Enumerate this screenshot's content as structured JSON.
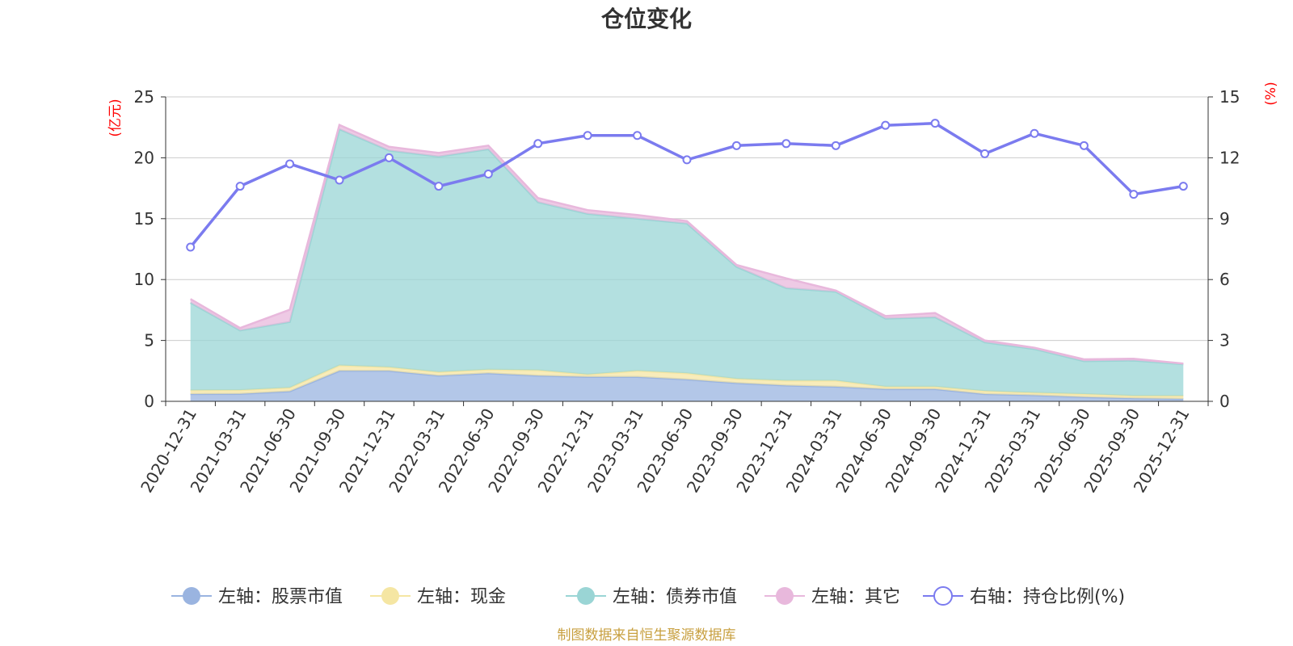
{
  "chart_data": {
    "type": "area",
    "title": "仓位变化",
    "left_axis": {
      "unit": "(亿元)",
      "min": 0,
      "max": 25,
      "ticks": [
        0,
        5,
        10,
        15,
        20,
        25
      ]
    },
    "right_axis": {
      "unit": "(%)",
      "min": 0,
      "max": 15,
      "ticks": [
        0,
        3,
        6,
        9,
        12,
        15
      ]
    },
    "grid": true,
    "legend_position": "bottom",
    "categories": [
      "2020-12-31",
      "2021-03-31",
      "2021-06-30",
      "2021-09-30",
      "2021-12-31",
      "2022-03-31",
      "2022-06-30",
      "2022-09-30",
      "2022-12-31",
      "2023-03-31",
      "2023-06-30",
      "2023-09-30",
      "2023-12-31",
      "2024-03-31",
      "2024-06-30",
      "2024-09-30",
      "2024-12-31",
      "2025-03-31",
      "2025-06-30",
      "2025-09-30",
      "2025-12-31"
    ],
    "series": [
      {
        "name": "左轴：股票市值",
        "axis": "left",
        "kind": "stacked-area",
        "color": "#9ab4e0",
        "values": [
          0.6,
          0.62,
          0.82,
          2.5,
          2.5,
          2.1,
          2.3,
          2.1,
          2.0,
          2.0,
          1.8,
          1.5,
          1.3,
          1.2,
          1.0,
          1.0,
          0.6,
          0.5,
          0.35,
          0.25,
          0.2
        ]
      },
      {
        "name": "左轴：现金",
        "axis": "left",
        "kind": "stacked-area",
        "color": "#f5e6a3",
        "values": [
          0.3,
          0.3,
          0.3,
          0.45,
          0.3,
          0.3,
          0.3,
          0.45,
          0.2,
          0.5,
          0.5,
          0.35,
          0.4,
          0.5,
          0.2,
          0.2,
          0.25,
          0.2,
          0.25,
          0.2,
          0.25
        ]
      },
      {
        "name": "左轴：债券市值",
        "axis": "left",
        "kind": "stacked-area",
        "color": "#9ad5d5",
        "values": [
          7.2,
          4.9,
          5.4,
          19.4,
          17.8,
          17.7,
          18.1,
          13.8,
          13.2,
          12.5,
          12.3,
          9.2,
          7.6,
          7.3,
          5.6,
          5.7,
          4.0,
          3.6,
          2.7,
          2.9,
          2.6
        ]
      },
      {
        "name": "左轴：其它",
        "axis": "left",
        "kind": "stacked-area",
        "color": "#e8b8dc",
        "values": [
          0.3,
          0.2,
          1.0,
          0.35,
          0.3,
          0.3,
          0.3,
          0.35,
          0.3,
          0.3,
          0.2,
          0.15,
          0.8,
          0.1,
          0.2,
          0.35,
          0.15,
          0.1,
          0.15,
          0.15,
          0.05
        ]
      },
      {
        "name": "右轴：持仓比例(%)",
        "axis": "right",
        "kind": "line",
        "color": "#7b7bef",
        "values": [
          7.6,
          10.6,
          11.7,
          10.9,
          12.0,
          10.6,
          11.2,
          12.7,
          13.1,
          13.1,
          11.9,
          12.6,
          12.7,
          12.6,
          13.6,
          13.7,
          12.2,
          13.2,
          12.6,
          10.2,
          10.6
        ]
      }
    ],
    "source_note": "制图数据来自恒生聚源数据库"
  }
}
